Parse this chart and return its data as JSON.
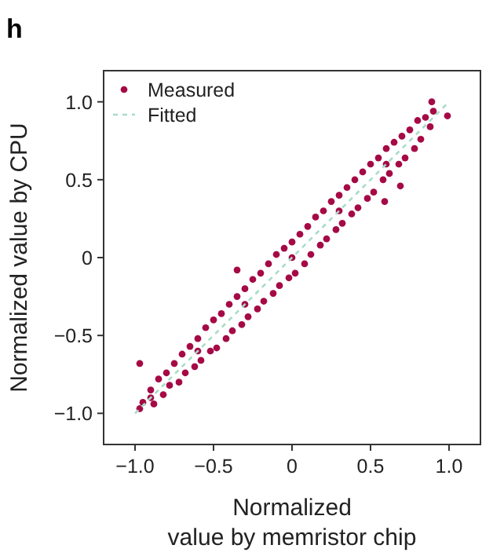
{
  "chart_data": {
    "type": "scatter",
    "title": "h",
    "xlabel": "Normalized\nvalue by memristor chip",
    "ylabel": "Normalized value by CPU",
    "xlim": [
      -1.2,
      1.2
    ],
    "ylim": [
      -1.2,
      1.2
    ],
    "xticks": [
      {
        "value": -1,
        "label": "−1.0"
      },
      {
        "value": -0.5,
        "label": "−0.5"
      },
      0,
      0.5,
      {
        "value": 1,
        "label": "1.0"
      }
    ],
    "yticks": [
      {
        "value": -1,
        "label": "−1.0"
      },
      {
        "value": -0.5,
        "label": "−0.5"
      },
      0,
      0.5,
      {
        "value": 1,
        "label": "1.0"
      }
    ],
    "grid": false,
    "legend": "top left",
    "series": [
      {
        "name": "Measured",
        "marker": "circle",
        "color": "#a50a46",
        "x": [
          -0.95,
          -0.9,
          -0.88,
          -0.85,
          -0.82,
          -0.8,
          -0.78,
          -0.75,
          -0.72,
          -0.7,
          -0.68,
          -0.65,
          -0.62,
          -0.6,
          -0.58,
          -0.55,
          -0.52,
          -0.5,
          -0.48,
          -0.45,
          -0.42,
          -0.4,
          -0.38,
          -0.35,
          -0.32,
          -0.3,
          -0.28,
          -0.25,
          -0.22,
          -0.2,
          -0.18,
          -0.15,
          -0.12,
          -0.1,
          -0.08,
          -0.05,
          -0.02,
          0,
          0.02,
          0.05,
          0.08,
          0.1,
          0.12,
          0.15,
          0.18,
          0.2,
          0.22,
          0.25,
          0.28,
          0.3,
          0.32,
          0.35,
          0.38,
          0.4,
          0.42,
          0.45,
          0.48,
          0.5,
          0.52,
          0.55,
          0.58,
          0.6,
          0.62,
          0.65,
          0.68,
          0.7,
          0.72,
          0.75,
          0.78,
          0.8,
          0.82,
          0.85,
          0.88,
          0.9,
          -0.6,
          -0.3,
          0,
          0.3,
          0.6,
          -0.9,
          -0.97,
          0.59,
          0.69,
          0.99,
          0.89,
          -0.35,
          -0.97
        ],
        "values": [
          -0.93,
          -0.85,
          -0.94,
          -0.78,
          -0.88,
          -0.74,
          -0.82,
          -0.68,
          -0.8,
          -0.62,
          -0.74,
          -0.57,
          -0.7,
          -0.52,
          -0.66,
          -0.45,
          -0.6,
          -0.4,
          -0.58,
          -0.36,
          -0.52,
          -0.3,
          -0.47,
          -0.25,
          -0.43,
          -0.2,
          -0.38,
          -0.14,
          -0.33,
          -0.1,
          -0.28,
          -0.04,
          -0.23,
          0.02,
          -0.18,
          0.06,
          -0.13,
          0.1,
          -0.1,
          0.15,
          -0.04,
          0.2,
          0.02,
          0.26,
          0.08,
          0.3,
          0.12,
          0.36,
          0.18,
          0.4,
          0.22,
          0.45,
          0.28,
          0.5,
          0.32,
          0.55,
          0.38,
          0.6,
          0.42,
          0.64,
          0.5,
          0.7,
          0.54,
          0.74,
          0.6,
          0.78,
          0.64,
          0.82,
          0.7,
          0.88,
          0.76,
          0.9,
          0.84,
          0.94,
          -0.6,
          -0.3,
          0,
          0.3,
          0.6,
          -0.9,
          -0.97,
          0.36,
          0.46,
          0.91,
          1.0,
          -0.08,
          -0.68
        ]
      },
      {
        "name": "Fitted",
        "type": "line",
        "line_style": "dashed",
        "color": "#a8dcc8",
        "x": [
          -1,
          1
        ],
        "values": [
          -1,
          1
        ]
      }
    ]
  }
}
